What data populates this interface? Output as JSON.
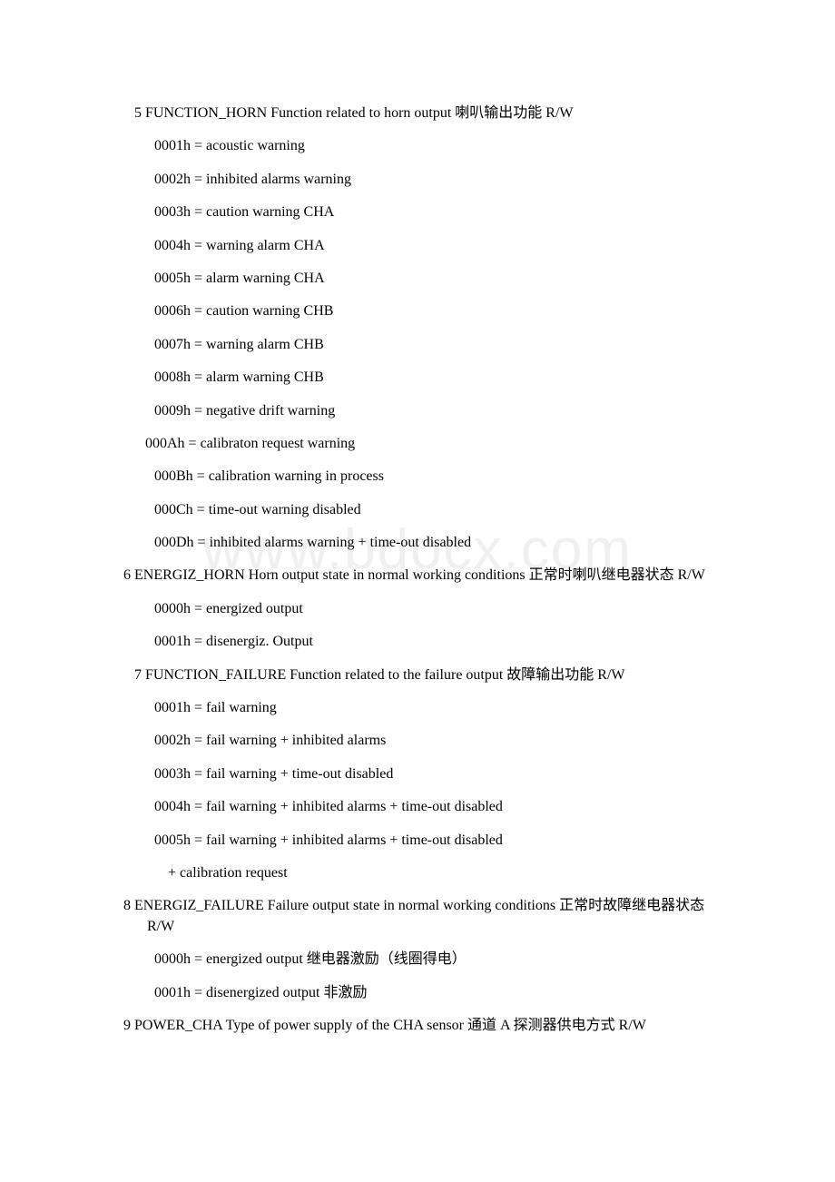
{
  "watermark": "www.bdocx.com",
  "items": [
    {
      "class": "param-header-tight",
      "text": "5 FUNCTION_HORN Function related to horn output 喇叭输出功能   R/W"
    },
    {
      "class": "value-line",
      "text": "0001h = acoustic warning"
    },
    {
      "class": "value-line",
      "text": "0002h = inhibited alarms warning"
    },
    {
      "class": "value-line",
      "text": "0003h = caution warning CHA"
    },
    {
      "class": "value-line",
      "text": "0004h = warning alarm CHA"
    },
    {
      "class": "value-line",
      "text": "0005h = alarm warning CHA"
    },
    {
      "class": "value-line",
      "text": "0006h = caution warning CHB"
    },
    {
      "class": "value-line",
      "text": "0007h = warning alarm CHB"
    },
    {
      "class": "value-line",
      "text": "0008h = alarm warning CHB"
    },
    {
      "class": "value-line",
      "text": "0009h = negative drift warning"
    },
    {
      "class": "value-line-shifted",
      "text": "000Ah = calibraton request warning"
    },
    {
      "class": "value-line",
      "text": "000Bh = calibration warning in process"
    },
    {
      "class": "value-line",
      "text": "000Ch = time-out warning disabled"
    },
    {
      "class": "value-line",
      "text": "000Dh = inhibited alarms warning + time-out disabled"
    },
    {
      "class": "param-header",
      "text": "6 ENERGIZ_HORN Horn output state in normal working conditions 正常时喇叭继电器状态  R/W"
    },
    {
      "class": "value-line",
      "text": "0000h = energized output"
    },
    {
      "class": "value-line",
      "text": "0001h = disenergiz. Output"
    },
    {
      "class": "param-header-tight",
      "text": "7 FUNCTION_FAILURE Function related to the failure output 故障输出功能    R/W"
    },
    {
      "class": "value-line",
      "text": "0001h = fail warning"
    },
    {
      "class": "value-line",
      "text": "0002h = fail warning + inhibited alarms"
    },
    {
      "class": "value-line",
      "text": "0003h = fail warning + time-out disabled"
    },
    {
      "class": "value-line",
      "text": "0004h = fail warning + inhibited alarms + time-out disabled"
    },
    {
      "class": "value-line",
      "text": "0005h = fail warning + inhibited alarms + time-out disabled"
    },
    {
      "class": "value-continuation",
      "text": "+ calibration request"
    },
    {
      "class": "param-header",
      "text": "8 ENERGIZ_FAILURE Failure output state in normal working conditions 正常时故障继电器状态 R/W"
    },
    {
      "class": "value-line",
      "text": "0000h = energized output 继电器激励（线圈得电）"
    },
    {
      "class": "value-line",
      "text": "0001h = disenergized output 非激励"
    },
    {
      "class": "param-header",
      "text": "9 POWER_CHA  Type of power supply of the CHA sensor 通道 A 探测器供电方式  R/W"
    }
  ]
}
